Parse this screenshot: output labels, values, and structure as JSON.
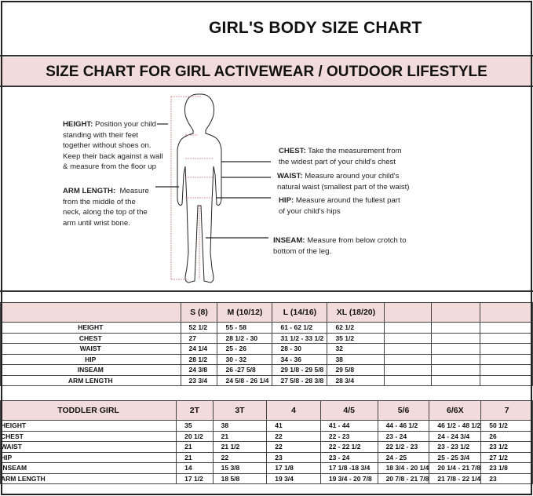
{
  "title": "GIRL'S BODY SIZE CHART",
  "subtitle": "SIZE CHART FOR GIRL ACTIVEWEAR / OUTDOOR LIFESTYLE",
  "notes": {
    "height": {
      "label": "HEIGHT:",
      "lines": [
        "Position your child",
        "standing with their feet",
        "together without shoes on.",
        "Keep their back against a wall",
        "& measure from the floor up"
      ]
    },
    "arm": {
      "label": "ARM LENGTH:",
      "lines": [
        "Measure",
        "from the middle of the",
        "neck, along the top of the",
        "arm until wrist bone."
      ]
    },
    "chest": {
      "label": "CHEST:",
      "lines": [
        "Take the measurement from",
        "the widest part of your child's chest"
      ]
    },
    "waist": {
      "label": "WAIST:",
      "lines": [
        "Measure around your child's",
        "natural waist (smallest part of the waist)"
      ]
    },
    "hip": {
      "label": "HIP:",
      "lines": [
        "Measure around the fullest part",
        "of your child's hips"
      ]
    },
    "inseam": {
      "label": "INSEAM:",
      "lines": [
        "Measure from below crotch to",
        "bottom of the leg."
      ]
    }
  },
  "girl_table": {
    "headers": [
      "",
      "S (8)",
      "M (10/12)",
      "L (14/16)",
      "XL (18/20)",
      "",
      "",
      ""
    ],
    "rows": [
      [
        "HEIGHT",
        "52 1/2",
        "55 - 58",
        "61 -  62 1/2",
        "62 1/2",
        "",
        "",
        ""
      ],
      [
        "CHEST",
        "27",
        "28 1/2 - 30",
        "31 1/2 - 33 1/2",
        "35 1/2",
        "",
        "",
        ""
      ],
      [
        "WAIST",
        "24 1/4",
        "25  - 26",
        "28 - 30",
        "32",
        "",
        "",
        ""
      ],
      [
        "HIP",
        "28 1/2",
        "30 - 32",
        "34 - 36",
        "38",
        "",
        "",
        ""
      ],
      [
        "INSEAM",
        "24 3/8",
        "26 -27 5/8",
        "29 1/8 - 29 5/8",
        "29 5/8",
        "",
        "",
        ""
      ],
      [
        "ARM LENGTH",
        "23 3/4",
        "24 5/8 - 26 1/4",
        "27 5/8  - 28 3/8",
        "28 3/4",
        "",
        "",
        ""
      ]
    ]
  },
  "toddler_table": {
    "headers": [
      "TODDLER GIRL",
      "2T",
      "3T",
      "4",
      "4/5",
      "5/6",
      "6/6X",
      "7"
    ],
    "rows": [
      [
        "HEIGHT",
        "35",
        "38",
        "41",
        "41 - 44",
        "44  -  46 1/2",
        "46 1/2 - 48 1/2",
        "50 1/2"
      ],
      [
        "CHEST",
        "20 1/2",
        "21",
        "22",
        "22 - 23",
        "23 - 24",
        "24 - 24 3/4",
        "26"
      ],
      [
        "WAIST",
        "21",
        "21 1/2",
        "22",
        "22 - 22 1/2",
        "22 1/2 - 23",
        "23 - 23 1/2",
        "23 1/2"
      ],
      [
        "HIP",
        "21",
        "22",
        "23",
        "23 - 24",
        "24 - 25",
        "25 - 25 3/4",
        "27 1/2"
      ],
      [
        "INSEAM",
        "14",
        "15 3/8",
        "17 1/8",
        "17 1/8 -18 3/4",
        "18 3/4 - 20 1/4",
        "20 1/4 - 21 7/8",
        "23 1/8"
      ],
      [
        "ARM LENGTH",
        "17 1/2",
        "18 5/8",
        "19 3/4",
        "19 3/4 - 20  7/8",
        "20 7/8 - 21 7/8",
        "21 7/8 - 22 1/4",
        "23"
      ]
    ]
  },
  "colors": {
    "header_fill": "#f2dcdb",
    "border": "#333333"
  }
}
